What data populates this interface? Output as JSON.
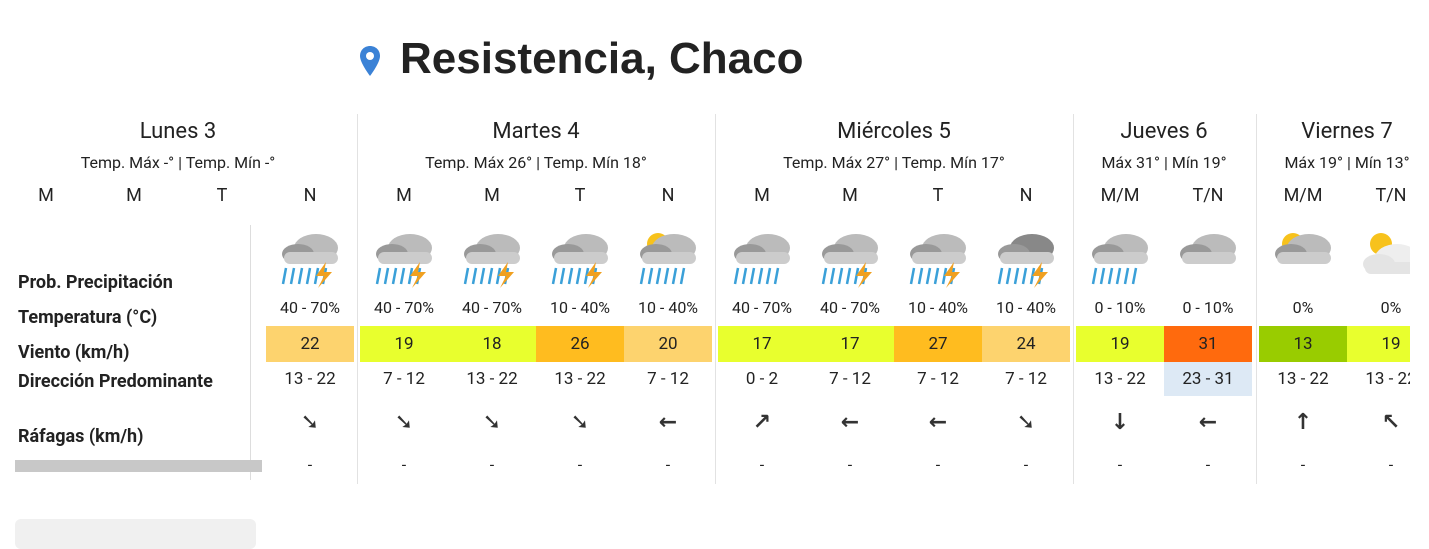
{
  "header": {
    "title": "Resistencia, Chaco"
  },
  "row_labels": [
    "Prob. Precipitación",
    "Temperatura (°C)",
    "Viento (km/h)",
    "Dirección Predominante",
    "Ráfagas (km/h)"
  ],
  "days": [
    {
      "name": "Lunes 3",
      "summary": "Temp. Máx -° | Temp. Mín -°",
      "periods": [
        {
          "label": "M"
        },
        {
          "label": "M"
        },
        {
          "label": "T"
        },
        {
          "label": "N",
          "precipitation": "40 - 70%",
          "temperature": "22",
          "temp_color": "#fdd36e",
          "wind": "13 - 22",
          "direction": "➘",
          "gusts": "-"
        }
      ]
    },
    {
      "name": "Martes 4",
      "summary": "Temp. Máx 26° | Temp. Mín 18°",
      "periods": [
        {
          "label": "M",
          "precipitation": "40 - 70%",
          "temperature": "19",
          "temp_color": "#e8ff2e",
          "wind": "7 - 12",
          "direction": "➘",
          "gusts": "-"
        },
        {
          "label": "M",
          "precipitation": "40 - 70%",
          "temperature": "18",
          "temp_color": "#e8ff2e",
          "wind": "13 - 22",
          "direction": "➘",
          "gusts": "-"
        },
        {
          "label": "T",
          "precipitation": "10 - 40%",
          "temperature": "26",
          "temp_color": "#ffbc1f",
          "wind": "13 - 22",
          "direction": "➘",
          "gusts": "-"
        },
        {
          "label": "N",
          "precipitation": "10 - 40%",
          "temperature": "20",
          "temp_color": "#fdd36e",
          "wind": "7 - 12",
          "direction": "←",
          "gusts": "-"
        }
      ]
    },
    {
      "name": "Miércoles 5",
      "summary": "Temp. Máx 27° | Temp. Mín 17°",
      "periods": [
        {
          "label": "M",
          "precipitation": "40 - 70%",
          "temperature": "17",
          "temp_color": "#e8ff2e",
          "wind": "0 - 2",
          "direction": "↗",
          "gusts": "-"
        },
        {
          "label": "M",
          "precipitation": "40 - 70%",
          "temperature": "17",
          "temp_color": "#e8ff2e",
          "wind": "7 - 12",
          "direction": "←",
          "gusts": "-"
        },
        {
          "label": "T",
          "precipitation": "10 - 40%",
          "temperature": "27",
          "temp_color": "#ffbc1f",
          "wind": "7 - 12",
          "direction": "←",
          "gusts": "-"
        },
        {
          "label": "N",
          "precipitation": "10 - 40%",
          "temperature": "24",
          "temp_color": "#fdd36e",
          "wind": "7 - 12",
          "direction": "➘",
          "gusts": "-"
        }
      ]
    },
    {
      "name": "Jueves 6",
      "summary": "Máx 31° | Mín 19°",
      "periods": [
        {
          "label": "M/M",
          "precipitation": "0 - 10%",
          "temperature": "19",
          "temp_color": "#e8ff2e",
          "wind": "13 - 22",
          "direction": "↓",
          "gusts": "-"
        },
        {
          "label": "T/N",
          "precipitation": "0 - 10%",
          "temperature": "31",
          "temp_color": "#ff6a0d",
          "wind": "23 - 31",
          "wind_color": "#dde9f5",
          "direction": "←",
          "gusts": "-"
        }
      ]
    },
    {
      "name": "Viernes 7",
      "summary": "Máx 19° | Mín 13°",
      "periods": [
        {
          "label": "M/M",
          "precipitation": "0%",
          "temperature": "13",
          "temp_color": "#99cc00",
          "wind": "13 - 22",
          "direction": "↑",
          "gusts": "-"
        },
        {
          "label": "T/N",
          "precipitation": "0%",
          "temperature": "19",
          "temp_color": "#e8ff2e",
          "wind": "13 - 22",
          "direction": "↖",
          "gusts": "-"
        }
      ]
    }
  ]
}
